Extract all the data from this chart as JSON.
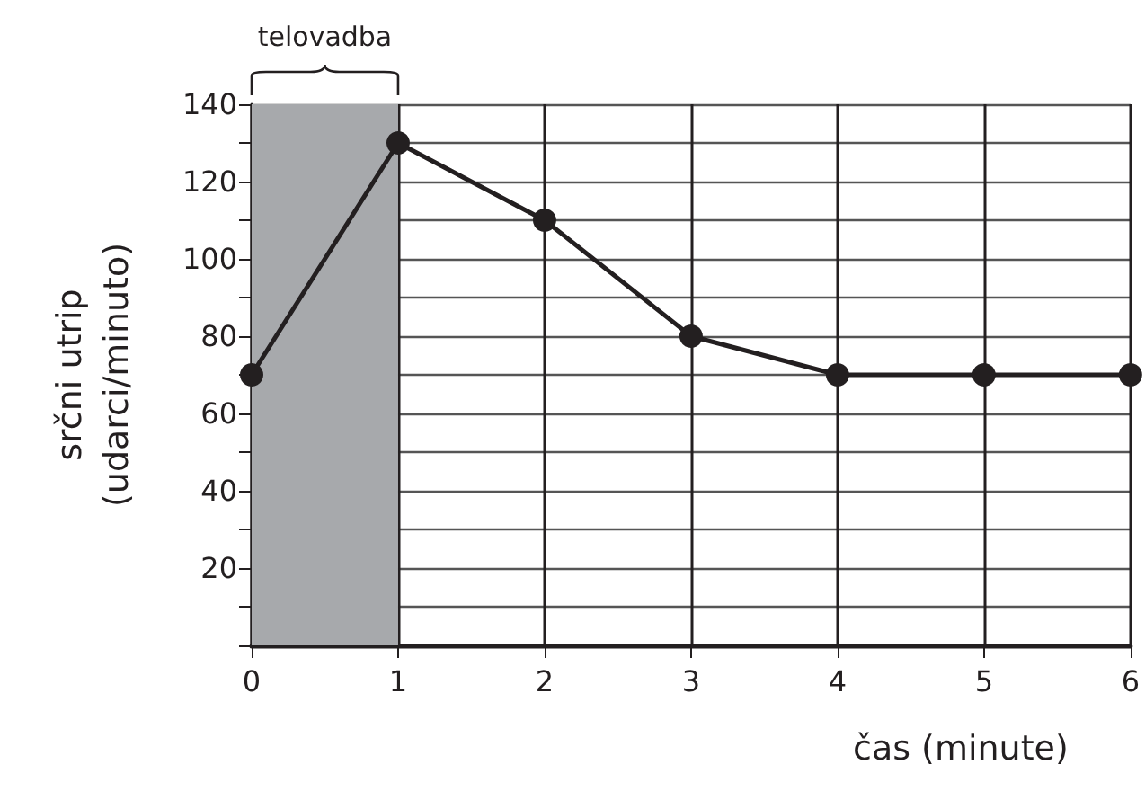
{
  "chart_data": {
    "type": "line",
    "xlabel": "čas (minute)",
    "ylabel": "srčni utrip\n(udarci/minuto)",
    "x": [
      0,
      1,
      2,
      3,
      4,
      5,
      6
    ],
    "series": [
      {
        "color": "#231f20",
        "values": [
          70,
          130,
          110,
          80,
          70,
          70,
          70
        ]
      }
    ],
    "xlim": [
      0,
      6
    ],
    "xticks": [
      0,
      1,
      2,
      3,
      4,
      5,
      6
    ],
    "ylim": [
      0,
      140
    ],
    "yticks": [
      {
        "value": 0,
        "label": null
      },
      {
        "value": 10,
        "label": null
      },
      20,
      {
        "value": 30,
        "label": null
      },
      40,
      {
        "value": 50,
        "label": null
      },
      60,
      {
        "value": 70,
        "label": null
      },
      80,
      {
        "value": 90,
        "label": null
      },
      100,
      {
        "value": 110,
        "label": null
      },
      120,
      {
        "value": 130,
        "label": null
      },
      140
    ],
    "bands": [
      {
        "axis": "x",
        "from": 0,
        "to": 1,
        "label": "telovadba",
        "color": "#a7a9ac"
      }
    ],
    "grid": true,
    "marker": "circle",
    "line_style": "solid"
  }
}
